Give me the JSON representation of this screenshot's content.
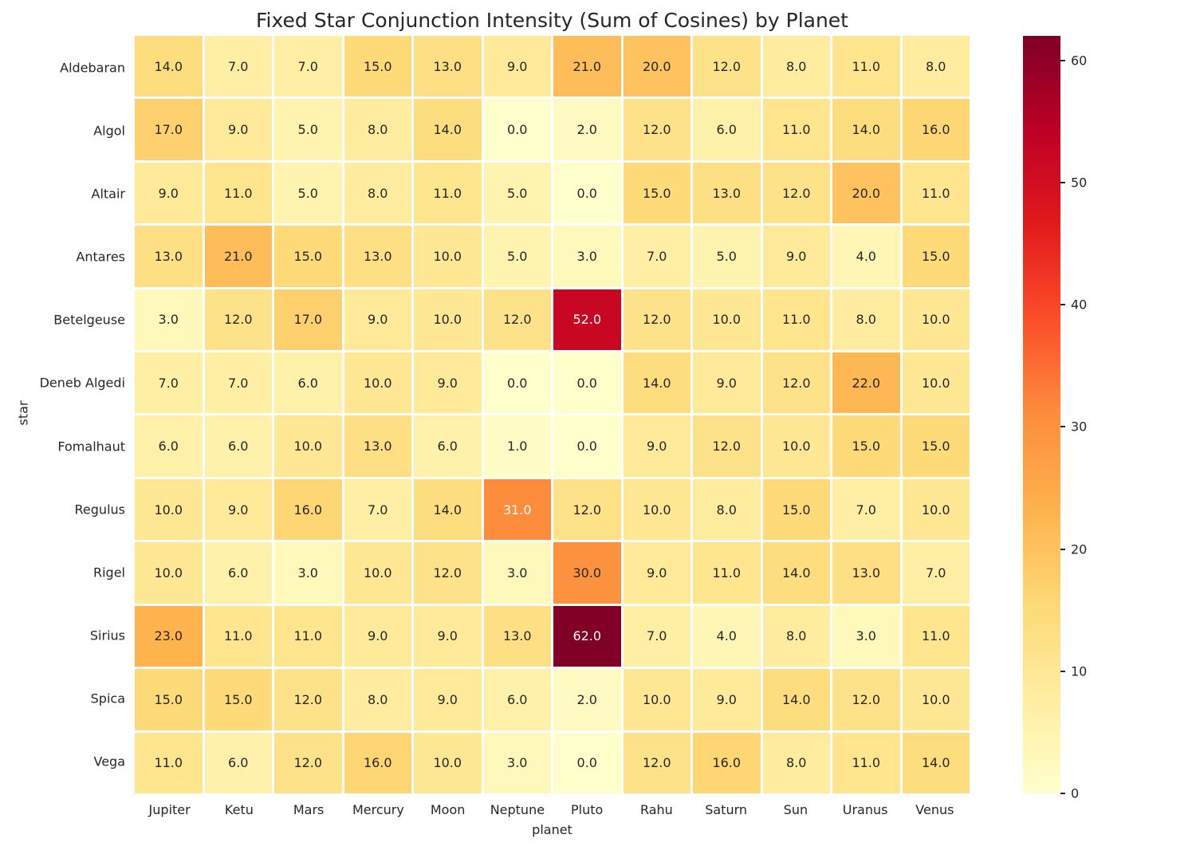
{
  "chart_data": {
    "type": "heatmap",
    "title": "Fixed Star Conjunction Intensity (Sum of Cosines) by Planet",
    "xlabel": "planet",
    "ylabel": "star",
    "columns": [
      "Jupiter",
      "Ketu",
      "Mars",
      "Mercury",
      "Moon",
      "Neptune",
      "Pluto",
      "Rahu",
      "Saturn",
      "Sun",
      "Uranus",
      "Venus"
    ],
    "rows": [
      "Aldebaran",
      "Algol",
      "Altair",
      "Antares",
      "Betelgeuse",
      "Deneb Algedi",
      "Fomalhaut",
      "Regulus",
      "Rigel",
      "Sirius",
      "Spica",
      "Vega"
    ],
    "values": [
      [
        14,
        7,
        7,
        15,
        13,
        9,
        21,
        20,
        12,
        8,
        11,
        8
      ],
      [
        17,
        9,
        5,
        8,
        14,
        0,
        2,
        12,
        6,
        11,
        14,
        16
      ],
      [
        9,
        11,
        5,
        8,
        11,
        5,
        0,
        15,
        13,
        12,
        20,
        11
      ],
      [
        13,
        21,
        15,
        13,
        10,
        5,
        3,
        7,
        5,
        9,
        4,
        15
      ],
      [
        3,
        12,
        17,
        9,
        10,
        12,
        52,
        12,
        10,
        11,
        8,
        10
      ],
      [
        7,
        7,
        6,
        10,
        9,
        0,
        0,
        14,
        9,
        12,
        22,
        10
      ],
      [
        6,
        6,
        10,
        13,
        6,
        1,
        0,
        9,
        12,
        10,
        15,
        15
      ],
      [
        10,
        9,
        16,
        7,
        14,
        31,
        12,
        10,
        8,
        15,
        7,
        10
      ],
      [
        10,
        6,
        3,
        10,
        12,
        3,
        30,
        9,
        11,
        14,
        13,
        7
      ],
      [
        23,
        11,
        11,
        9,
        9,
        13,
        62,
        7,
        4,
        8,
        3,
        11
      ],
      [
        15,
        15,
        12,
        8,
        9,
        6,
        2,
        10,
        9,
        14,
        12,
        10
      ],
      [
        11,
        6,
        12,
        16,
        10,
        3,
        0,
        12,
        16,
        8,
        11,
        14
      ]
    ],
    "annotation_decimals": 1,
    "vmin": 0,
    "vmax": 62,
    "colormap": "YlOrRd",
    "colormap_stops": [
      "#ffffcc",
      "#ffeda0",
      "#fed976",
      "#feb24c",
      "#fd8d3c",
      "#fc4e2a",
      "#e31a1c",
      "#bd0026",
      "#800026"
    ],
    "colorbar_ticks": [
      0,
      10,
      20,
      30,
      40,
      50,
      60
    ],
    "colorbar_position": "right",
    "grid_line_color": "#ffffff",
    "annotation_dark_color": "#262626",
    "annotation_light_color": "#ffffff"
  }
}
